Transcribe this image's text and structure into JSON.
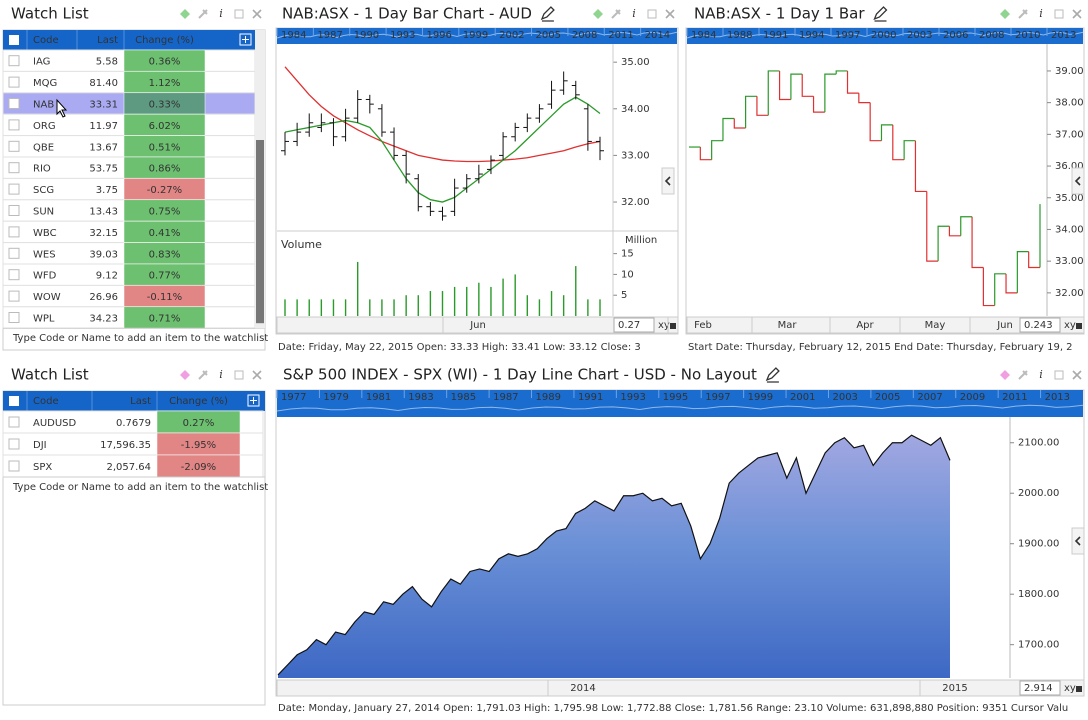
{
  "watch1": {
    "title": "Watch List",
    "headers": [
      "Code",
      "Last",
      "Change (%)"
    ],
    "selected_row": 2,
    "rows": [
      [
        "IAG",
        "5.58",
        "0.36%"
      ],
      [
        "MQG",
        "81.40",
        "1.12%"
      ],
      [
        "NAB",
        "33.31",
        "0.33%"
      ],
      [
        "ORG",
        "11.97",
        "6.02%"
      ],
      [
        "QBE",
        "13.67",
        "0.51%"
      ],
      [
        "RIO",
        "53.75",
        "0.86%"
      ],
      [
        "SCG",
        "3.75",
        "-0.27%"
      ],
      [
        "SUN",
        "13.43",
        "0.75%"
      ],
      [
        "WBC",
        "32.15",
        "0.41%"
      ],
      [
        "WES",
        "39.03",
        "0.83%"
      ],
      [
        "WFD",
        "9.12",
        "0.77%"
      ],
      [
        "WOW",
        "26.96",
        "-0.11%"
      ],
      [
        "WPL",
        "34.23",
        "0.71%"
      ]
    ],
    "footer": "Type Code or Name to add an item to the watchlist"
  },
  "watch2": {
    "title": "Watch List",
    "headers": [
      "Code",
      "Last",
      "Change (%)"
    ],
    "rows": [
      [
        "AUDUSD",
        "0.7679",
        "0.27%"
      ],
      [
        "DJI",
        "17,596.35",
        "-1.95%"
      ],
      [
        "SPX",
        "2,057.64",
        "-2.09%"
      ]
    ],
    "footer": "Type Code or Name to add an item to the watchlist"
  },
  "chart1": {
    "title": "NAB:ASX - 1 Day Bar Chart - AUD",
    "timeline": [
      "1984",
      "1987",
      "1990",
      "1993",
      "1996",
      "1999",
      "2002",
      "2005",
      "2008",
      "2011",
      "2014"
    ],
    "price": {
      "ylim": [
        31.4,
        35.39
      ],
      "yticks": [
        {
          "value": 35,
          "label": "35.00"
        },
        {
          "value": 34,
          "label": "34.00"
        },
        {
          "value": 33,
          "label": "33.00"
        },
        {
          "value": 32,
          "label": "32.00"
        }
      ],
      "open": [
        33.1,
        33.3,
        33.5,
        33.6,
        33.7,
        33.4,
        33.8,
        34.2,
        34.0,
        33.5,
        33.0,
        32.5,
        31.9,
        31.8,
        31.8,
        32.3,
        32.5,
        32.7,
        33.0,
        33.4,
        33.6,
        33.8,
        34.1,
        34.4,
        34.5,
        34.0,
        33.3
      ],
      "high": [
        33.5,
        33.7,
        33.9,
        33.9,
        33.8,
        34.0,
        34.4,
        34.3,
        34.1,
        33.6,
        33.1,
        32.6,
        32.0,
        31.9,
        32.5,
        32.6,
        32.8,
        33.0,
        33.5,
        33.7,
        33.9,
        34.1,
        34.6,
        34.8,
        34.6,
        34.1,
        33.4
      ],
      "low": [
        33.0,
        33.2,
        33.4,
        33.5,
        33.2,
        33.3,
        33.7,
        33.9,
        33.4,
        32.9,
        32.4,
        31.8,
        31.7,
        31.6,
        31.7,
        32.2,
        32.4,
        32.6,
        32.9,
        33.3,
        33.5,
        33.7,
        34.0,
        34.3,
        34.2,
        33.1,
        32.9
      ],
      "close": [
        33.3,
        33.5,
        33.7,
        33.7,
        33.4,
        33.8,
        34.2,
        34.1,
        33.5,
        33.0,
        32.6,
        31.9,
        31.8,
        31.7,
        32.3,
        32.5,
        32.6,
        32.9,
        33.4,
        33.6,
        33.8,
        34.0,
        34.4,
        34.6,
        34.3,
        33.3,
        33.1
      ],
      "ma_fast": [
        33.5,
        33.55,
        33.6,
        33.65,
        33.7,
        33.75,
        33.7,
        33.6,
        33.3,
        32.9,
        32.5,
        32.2,
        32.05,
        32.0,
        32.1,
        32.3,
        32.5,
        32.7,
        32.9,
        33.1,
        33.35,
        33.6,
        33.85,
        34.1,
        34.25,
        34.1,
        33.9
      ],
      "ma_fast_color": "#2a9a2a",
      "ma_slow": [
        34.9,
        34.6,
        34.3,
        34.05,
        33.85,
        33.7,
        33.55,
        33.42,
        33.3,
        33.2,
        33.1,
        33.0,
        32.95,
        32.9,
        32.88,
        32.87,
        32.87,
        32.88,
        32.9,
        32.92,
        32.95,
        33.0,
        33.05,
        33.1,
        33.18,
        33.25,
        33.3
      ],
      "ma_slow_color": "#e03030"
    },
    "volume": {
      "label": "Volume",
      "unit": "Million",
      "ylim": [
        0,
        20.2
      ],
      "yticks": [
        15,
        10,
        5
      ],
      "color": "#2a9a2a",
      "values": [
        4,
        4,
        4,
        4,
        4,
        4,
        13,
        4,
        4,
        4,
        5,
        5,
        6,
        6,
        7,
        7,
        8,
        7,
        9,
        10,
        5,
        4,
        6,
        5,
        12,
        4,
        4
      ]
    },
    "x_labels": [
      "Jun"
    ],
    "zoom": "0.27",
    "zoom_button": "xy",
    "status": "Date: Friday, May 22, 2015 Open: 33.33 High: 33.41 Low: 33.12 Close: 3"
  },
  "chart2": {
    "title": "NAB:ASX - 1 Day 1 Bar",
    "timeline": [
      "1984",
      "1988",
      "1991",
      "1994",
      "1997",
      "2000",
      "2003",
      "2006",
      "2008",
      "2010",
      "2013"
    ],
    "ylim": [
      31.27,
      39.85
    ],
    "yticks": [
      {
        "value": 39,
        "label": "39.00"
      },
      {
        "value": 38,
        "label": "38.00"
      },
      {
        "value": 37,
        "label": "37.00"
      },
      {
        "value": 36,
        "label": "36.00"
      },
      {
        "value": 35,
        "label": "35.00"
      },
      {
        "value": 34,
        "label": "34.00"
      },
      {
        "value": 33,
        "label": "33.00"
      },
      {
        "value": 32,
        "label": "32.00"
      }
    ],
    "values": [
      36.6,
      36.2,
      36.8,
      37.5,
      37.2,
      38.2,
      37.6,
      39.0,
      38.1,
      38.9,
      38.2,
      37.7,
      38.9,
      39.0,
      38.3,
      38.0,
      36.8,
      37.3,
      36.2,
      36.8,
      35.2,
      33.0,
      34.1,
      33.8,
      34.4,
      32.8,
      31.6,
      32.6,
      32.0,
      33.3,
      32.8,
      34.8
    ],
    "up_color": "#2a9a2a",
    "down_color": "#e03030",
    "x_labels": [
      "Feb",
      "Mar",
      "Apr",
      "May",
      "Jun"
    ],
    "zoom": "0.243",
    "zoom_button": "xy",
    "status": "Start Date: Thursday, February 12, 2015 End Date: Thursday, February 19, 2"
  },
  "chart3": {
    "title": "S&P 500 INDEX - SPX (WI) - 1 Day Line Chart - USD - No Layout",
    "timeline": [
      "1977",
      "1979",
      "1981",
      "1983",
      "1985",
      "1987",
      "1989",
      "1991",
      "1993",
      "1995",
      "1997",
      "1999",
      "2001",
      "2003",
      "2005",
      "2007",
      "2009",
      "2011",
      "2013"
    ],
    "ylim": [
      1634,
      2151
    ],
    "yticks": [
      {
        "value": 2100,
        "label": "2100.00"
      },
      {
        "value": 2000,
        "label": "2000.00"
      },
      {
        "value": 1900,
        "label": "1900.00"
      },
      {
        "value": 1800,
        "label": "1800.00"
      },
      {
        "value": 1700,
        "label": "1700.00"
      }
    ],
    "values": [
      1640,
      1660,
      1680,
      1690,
      1710,
      1700,
      1725,
      1720,
      1745,
      1765,
      1760,
      1785,
      1780,
      1800,
      1815,
      1790,
      1775,
      1805,
      1830,
      1820,
      1845,
      1850,
      1845,
      1870,
      1880,
      1875,
      1880,
      1890,
      1910,
      1925,
      1930,
      1960,
      1970,
      1985,
      1975,
      1965,
      1995,
      1995,
      2000,
      1985,
      1990,
      1975,
      1980,
      1935,
      1870,
      1900,
      1950,
      2020,
      2040,
      2055,
      2070,
      2075,
      2080,
      2030,
      2070,
      2000,
      2040,
      2080,
      2100,
      2110,
      2090,
      2095,
      2055,
      2080,
      2100,
      2100,
      2115,
      2105,
      2095,
      2110,
      2065
    ],
    "x_labels": [
      "2014",
      "2015"
    ],
    "zoom": "2.914",
    "zoom_button": "xy",
    "status": "Date: Monday, January 27, 2014 Open: 1,791.03 High: 1,795.98 Low: 1,772.88 Close: 1,781.56 Range: 23.10 Volume: 631,898,880 Position: 9351 Cursor Valu"
  }
}
